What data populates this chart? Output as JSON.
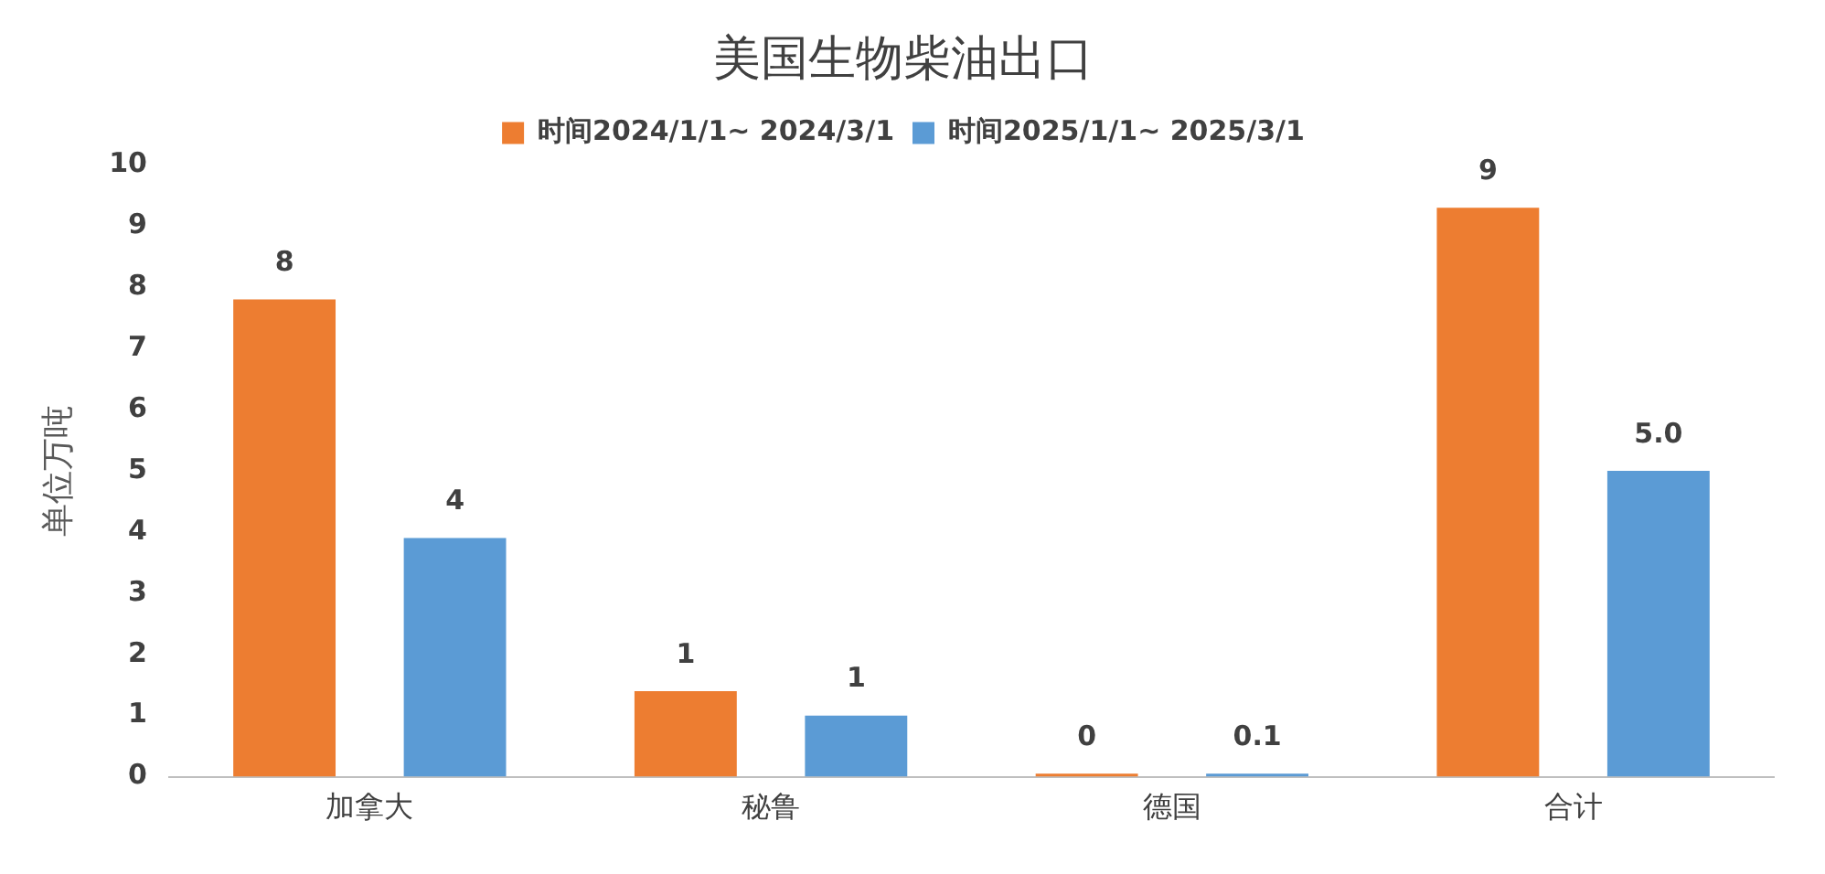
{
  "chart_data": {
    "type": "bar",
    "title": "美国生物柴油出口",
    "ylabel": "单位万吨",
    "categories": [
      "加拿大",
      "秘鲁",
      "德国",
      "合计"
    ],
    "series": [
      {
        "name": "时间2024/1/1~ 2024/3/1",
        "color": "#ed7d31",
        "values": [
          7.8,
          1.4,
          0.05,
          9.3
        ],
        "value_labels": [
          "8",
          "1",
          "0",
          "9"
        ]
      },
      {
        "name": "时间2025/1/1~ 2025/3/1",
        "color": "#5b9bd5",
        "values": [
          3.9,
          1.0,
          0.05,
          5.0
        ],
        "value_labels": [
          "4",
          "1",
          "0.1",
          "5.0"
        ]
      }
    ],
    "ylim": [
      0,
      10
    ],
    "yticks": [
      0,
      1,
      2,
      3,
      4,
      5,
      6,
      7,
      8,
      9,
      10
    ],
    "grid": false,
    "legend": "top"
  }
}
